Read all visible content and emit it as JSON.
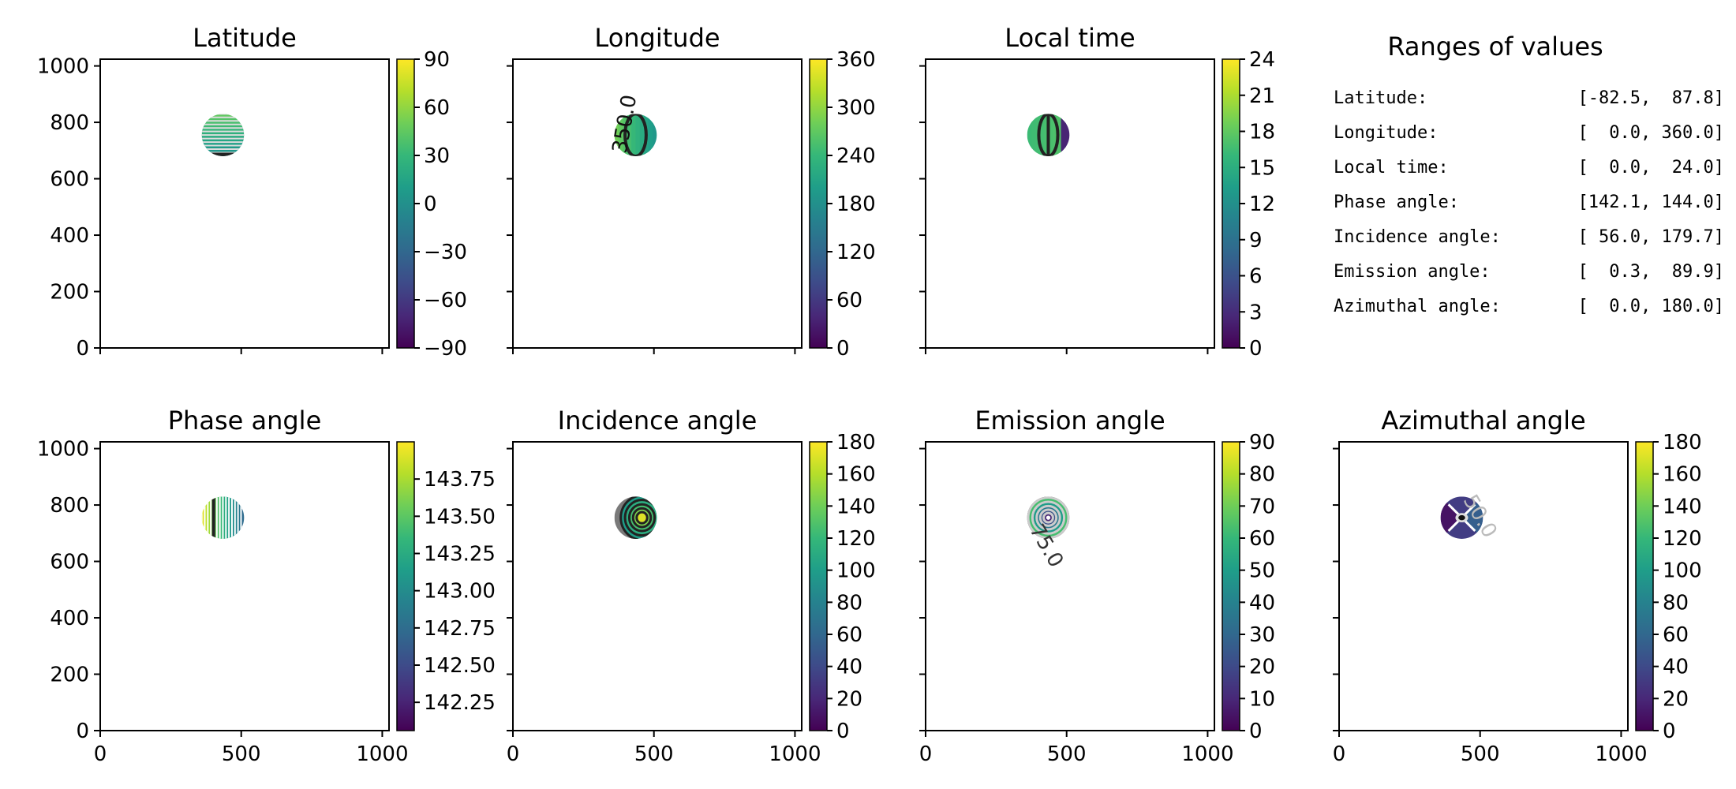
{
  "colors": {
    "viridis": [
      "#440154",
      "#482878",
      "#3e4a89",
      "#31688e",
      "#26828e",
      "#1f9e89",
      "#35b779",
      "#6ece58",
      "#b5de2b",
      "#fde725"
    ],
    "axis": "#000000",
    "contour": "#222222"
  },
  "ranges": {
    "title": "Ranges of values",
    "rows": [
      {
        "label": "Latitude:",
        "value": "[-82.5,  87.8]"
      },
      {
        "label": "Longitude:",
        "value": "[  0.0, 360.0]"
      },
      {
        "label": "Local time:",
        "value": "[  0.0,  24.0]"
      },
      {
        "label": "Phase angle:",
        "value": "[142.1, 144.0]"
      },
      {
        "label": "Incidence angle:",
        "value": "[ 56.0, 179.7]"
      },
      {
        "label": "Emission angle:",
        "value": "[  0.3,  89.9]"
      },
      {
        "label": "Azimuthal angle:",
        "value": "[  0.0, 180.0]"
      }
    ]
  },
  "chart_data": [
    {
      "type": "heatmap",
      "title": "Latitude",
      "field": "latitude",
      "xlim": [
        0,
        1024
      ],
      "ylim": [
        0,
        1024
      ],
      "x_ticks": [
        0,
        500,
        1000
      ],
      "y_ticks": [
        0,
        200,
        400,
        600,
        800,
        1000
      ],
      "show_x_tick_labels": false,
      "show_y_tick_labels": true,
      "colorbar": {
        "min": -90,
        "max": 90,
        "ticks": [
          "-90",
          "-60",
          "-30",
          "0",
          "30",
          "60",
          "90"
        ]
      },
      "disk": {
        "center": [
          435,
          755
        ],
        "radius": 75
      },
      "contour_labels": []
    },
    {
      "type": "heatmap",
      "title": "Longitude",
      "field": "longitude",
      "xlim": [
        0,
        1024
      ],
      "ylim": [
        0,
        1024
      ],
      "x_ticks": [
        0,
        500,
        1000
      ],
      "y_ticks": [
        0,
        200,
        400,
        600,
        800,
        1000
      ],
      "show_x_tick_labels": false,
      "show_y_tick_labels": false,
      "colorbar": {
        "min": 0,
        "max": 360,
        "ticks": [
          "0",
          "60",
          "120",
          "180",
          "240",
          "300",
          "360"
        ]
      },
      "disk": {
        "center": [
          435,
          755
        ],
        "radius": 75
      },
      "contour_labels": [
        "350.0"
      ]
    },
    {
      "type": "heatmap",
      "title": "Local time",
      "field": "local_time",
      "xlim": [
        0,
        1024
      ],
      "ylim": [
        0,
        1024
      ],
      "x_ticks": [
        0,
        500,
        1000
      ],
      "y_ticks": [
        0,
        200,
        400,
        600,
        800,
        1000
      ],
      "show_x_tick_labels": false,
      "show_y_tick_labels": false,
      "colorbar": {
        "min": 0,
        "max": 24,
        "ticks": [
          "0",
          "3",
          "6",
          "9",
          "12",
          "15",
          "18",
          "21",
          "24"
        ]
      },
      "disk": {
        "center": [
          435,
          755
        ],
        "radius": 75
      },
      "contour_labels": []
    },
    {
      "type": "heatmap",
      "title": "Phase angle",
      "field": "phase_angle",
      "xlim": [
        0,
        1024
      ],
      "ylim": [
        0,
        1024
      ],
      "x_ticks": [
        0,
        500,
        1000
      ],
      "y_ticks": [
        0,
        200,
        400,
        600,
        800,
        1000
      ],
      "show_x_tick_labels": true,
      "show_y_tick_labels": true,
      "colorbar": {
        "min": 142.06,
        "max": 144.0,
        "ticks": [
          "142.25",
          "142.50",
          "142.75",
          "143.00",
          "143.25",
          "143.50",
          "143.75"
        ]
      },
      "disk": {
        "center": [
          435,
          755
        ],
        "radius": 75
      },
      "contour_labels": []
    },
    {
      "type": "heatmap",
      "title": "Incidence angle",
      "field": "incidence_angle",
      "xlim": [
        0,
        1024
      ],
      "ylim": [
        0,
        1024
      ],
      "x_ticks": [
        0,
        500,
        1000
      ],
      "y_ticks": [
        0,
        200,
        400,
        600,
        800,
        1000
      ],
      "show_x_tick_labels": true,
      "show_y_tick_labels": false,
      "colorbar": {
        "min": 0,
        "max": 180,
        "ticks": [
          "0",
          "20",
          "40",
          "60",
          "80",
          "100",
          "120",
          "140",
          "160",
          "180"
        ]
      },
      "disk": {
        "center": [
          435,
          755
        ],
        "radius": 75
      },
      "contour_labels": []
    },
    {
      "type": "heatmap",
      "title": "Emission angle",
      "field": "emission_angle",
      "xlim": [
        0,
        1024
      ],
      "ylim": [
        0,
        1024
      ],
      "x_ticks": [
        0,
        500,
        1000
      ],
      "y_ticks": [
        0,
        200,
        400,
        600,
        800,
        1000
      ],
      "show_x_tick_labels": true,
      "show_y_tick_labels": false,
      "colorbar": {
        "min": 0,
        "max": 90,
        "ticks": [
          "0",
          "10",
          "20",
          "30",
          "40",
          "50",
          "60",
          "70",
          "80",
          "90"
        ]
      },
      "disk": {
        "center": [
          435,
          755
        ],
        "radius": 75
      },
      "contour_labels": [
        "75.0"
      ]
    },
    {
      "type": "heatmap",
      "title": "Azimuthal angle",
      "field": "azimuthal_angle",
      "xlim": [
        0,
        1024
      ],
      "ylim": [
        0,
        1024
      ],
      "x_ticks": [
        0,
        500,
        1000
      ],
      "y_ticks": [
        0,
        200,
        400,
        600,
        800,
        1000
      ],
      "show_x_tick_labels": true,
      "show_y_tick_labels": false,
      "colorbar": {
        "min": 0,
        "max": 180,
        "ticks": [
          "0",
          "20",
          "40",
          "60",
          "80",
          "100",
          "120",
          "140",
          "160",
          "180"
        ]
      },
      "disk": {
        "center": [
          435,
          755
        ],
        "radius": 75
      },
      "contour_labels": [
        "50.0"
      ]
    }
  ]
}
